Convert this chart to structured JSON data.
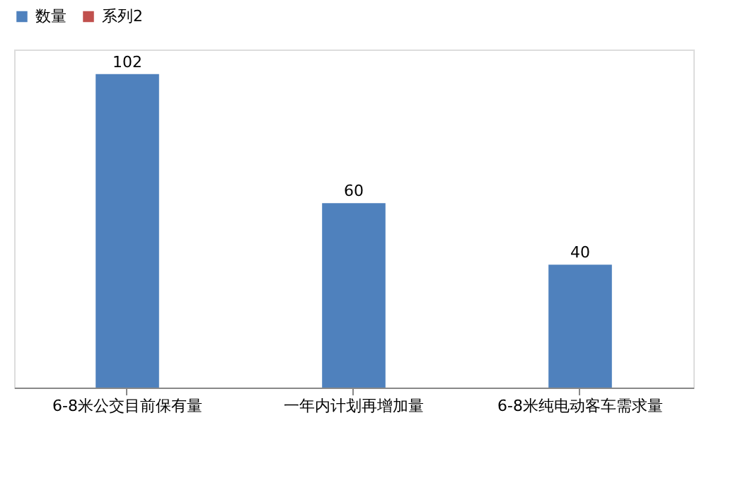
{
  "chart_data": {
    "type": "bar",
    "categories": [
      "6-8米公交目前保有量",
      "一年内计划再增加量",
      "6-8米纯电动客车需求量"
    ],
    "series": [
      {
        "name": "数量",
        "color": "#4f81bd",
        "values": [
          102,
          60,
          40
        ]
      },
      {
        "name": "系列2",
        "color": "#c0504d",
        "values": [
          null,
          null,
          null
        ]
      }
    ],
    "data_labels": true,
    "legend": "top",
    "grid": false
  }
}
